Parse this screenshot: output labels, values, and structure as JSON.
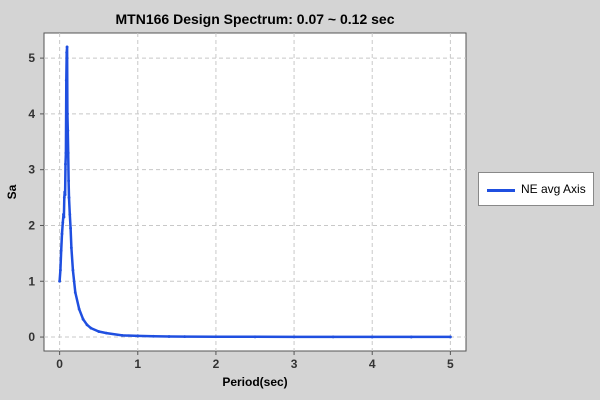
{
  "chart_data": {
    "type": "line",
    "title": "MTN166 Design Spectrum: 0.07 ~ 0.12 sec",
    "xlabel": "Period(sec)",
    "ylabel": "Sa",
    "xlim": [
      -0.2,
      5.2
    ],
    "ylim": [
      -0.25,
      5.45
    ],
    "xticks": [
      0,
      1,
      2,
      3,
      4,
      5
    ],
    "yticks": [
      0,
      1,
      2,
      3,
      4,
      5
    ],
    "grid": true,
    "legend_position": "right",
    "series": [
      {
        "name": "NE avg Axis",
        "color": "#1f4fe0",
        "x": [
          0.0,
          0.01,
          0.02,
          0.03,
          0.04,
          0.05,
          0.055,
          0.06,
          0.065,
          0.07,
          0.075,
          0.08,
          0.085,
          0.09,
          0.095,
          0.1,
          0.105,
          0.11,
          0.115,
          0.12,
          0.13,
          0.14,
          0.15,
          0.17,
          0.2,
          0.25,
          0.3,
          0.35,
          0.4,
          0.5,
          0.6,
          0.8,
          1.0,
          1.2,
          1.4,
          1.6,
          2.0,
          2.5,
          3.0,
          3.5,
          4.0,
          4.5,
          5.0
        ],
        "y": [
          1.0,
          1.2,
          1.55,
          1.85,
          2.05,
          2.2,
          2.15,
          2.5,
          2.6,
          2.55,
          3.1,
          3.3,
          4.6,
          5.1,
          5.2,
          4.0,
          3.7,
          3.3,
          2.8,
          2.5,
          2.2,
          1.95,
          1.6,
          1.2,
          0.8,
          0.5,
          0.32,
          0.22,
          0.16,
          0.1,
          0.07,
          0.03,
          0.02,
          0.015,
          0.01,
          0.008,
          0.005,
          0.004,
          0.003,
          0.003,
          0.002,
          0.002,
          0.002
        ]
      }
    ]
  }
}
